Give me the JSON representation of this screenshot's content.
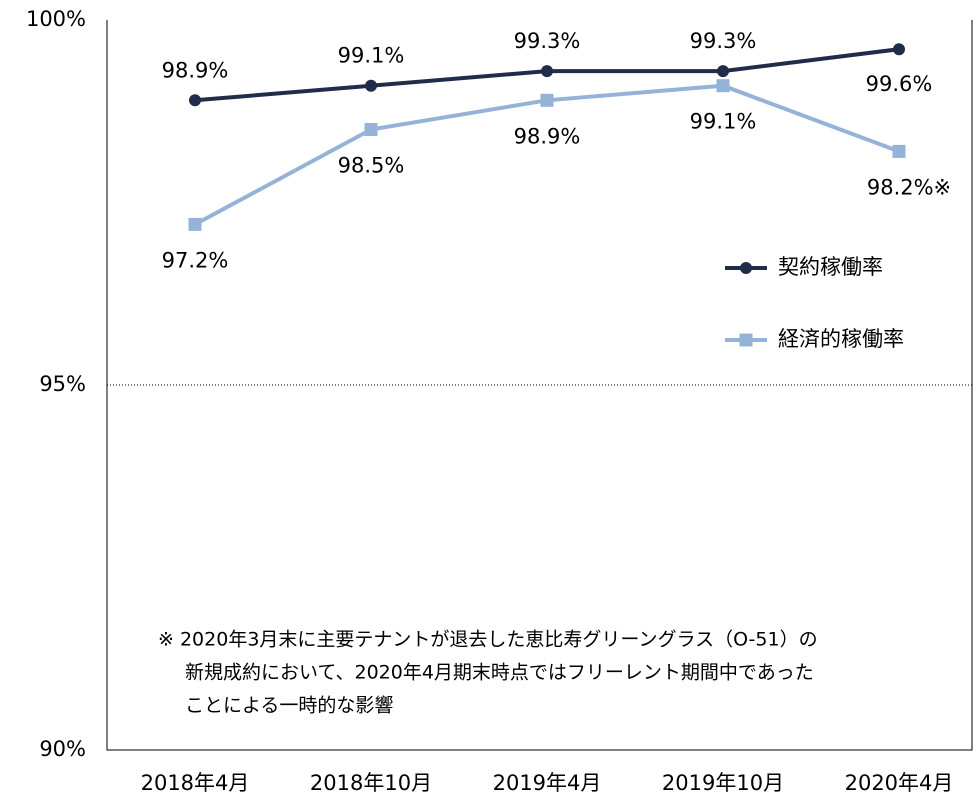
{
  "chart_data": {
    "type": "line",
    "categories": [
      "2018年4月",
      "2018年10月",
      "2019年4月",
      "2019年10月",
      "2020年4月"
    ],
    "series": [
      {
        "name": "契約稼働率",
        "color": "#1f2d4a",
        "marker": "circle",
        "values": [
          98.9,
          99.1,
          99.3,
          99.3,
          99.6
        ],
        "value_labels": [
          "98.9%",
          "99.1%",
          "99.3%",
          "99.3%",
          "99.6%"
        ]
      },
      {
        "name": "経済的稼働率",
        "color": "#95b3d7",
        "marker": "square",
        "values": [
          97.2,
          98.5,
          98.9,
          99.1,
          98.2
        ],
        "value_labels": [
          "97.2%",
          "98.5%",
          "98.9%",
          "99.1%",
          "98.2%※"
        ]
      }
    ],
    "ylim": [
      90,
      100
    ],
    "yticks": [
      {
        "value": 90,
        "label": "90%"
      },
      {
        "value": 95,
        "label": "95%"
      },
      {
        "value": 100,
        "label": "100%"
      }
    ],
    "grid": true,
    "legend": "right",
    "annotation": [
      "※ 2020年3月末に主要テナントが退去した恵比寿グリーングラス（O-51）の",
      "新規成約において、2020年4月期末時点ではフリーレント期間中であった",
      "ことによる一時的な影響"
    ]
  }
}
